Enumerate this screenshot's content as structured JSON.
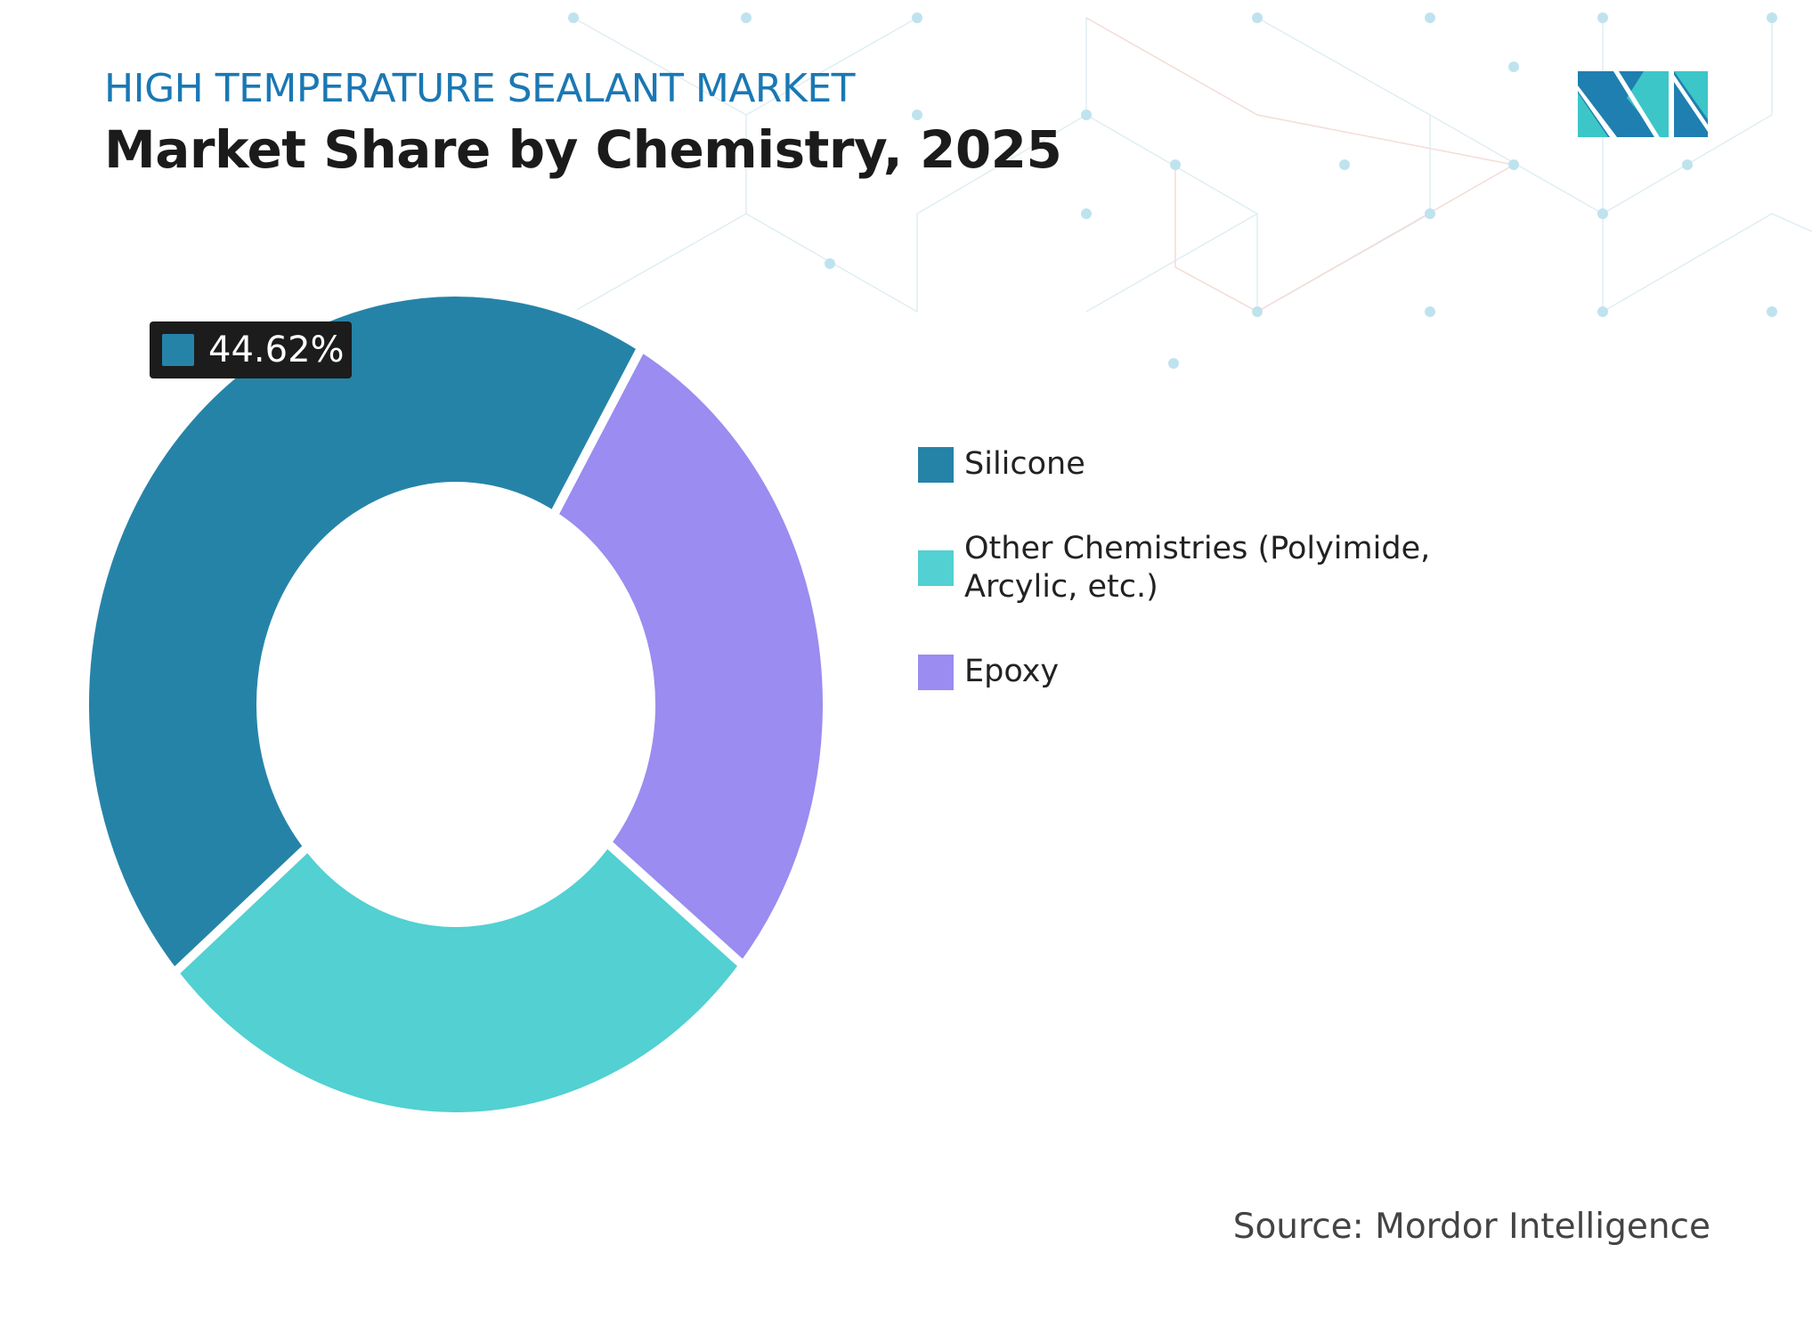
{
  "header": {
    "kicker": "HIGH TEMPERATURE SEALANT MARKET",
    "title": "Market Share by Chemistry, 2025"
  },
  "chart_data": {
    "type": "pie",
    "style": "donut",
    "title": "Market Share by Chemistry, 2025",
    "categories": [
      "Silicone",
      "Other Chemistries (Polyimide, Arcylic, etc.)",
      "Epoxy"
    ],
    "values": [
      44.62,
      27.8,
      27.58
    ],
    "colors": [
      "#2683a8",
      "#52d0d2",
      "#9a8cf0"
    ],
    "data_labels": [
      {
        "category": "Silicone",
        "text": "44.62%"
      }
    ],
    "legend_position": "right",
    "unit": "%"
  },
  "legend": {
    "items": [
      {
        "label": "Silicone",
        "color": "#2683a8"
      },
      {
        "label": "Other Chemistries (Polyimide, Arcylic, etc.)",
        "color": "#52d0d2"
      },
      {
        "label": "Epoxy",
        "color": "#9a8cf0"
      }
    ]
  },
  "badge": {
    "text": "44.62%",
    "color": "#2683a8"
  },
  "source": "Source: Mordor Intelligence",
  "logo": {
    "name": "mordor-intelligence-logo",
    "colors": [
      "#1f7fb0",
      "#3cc6c8"
    ]
  }
}
